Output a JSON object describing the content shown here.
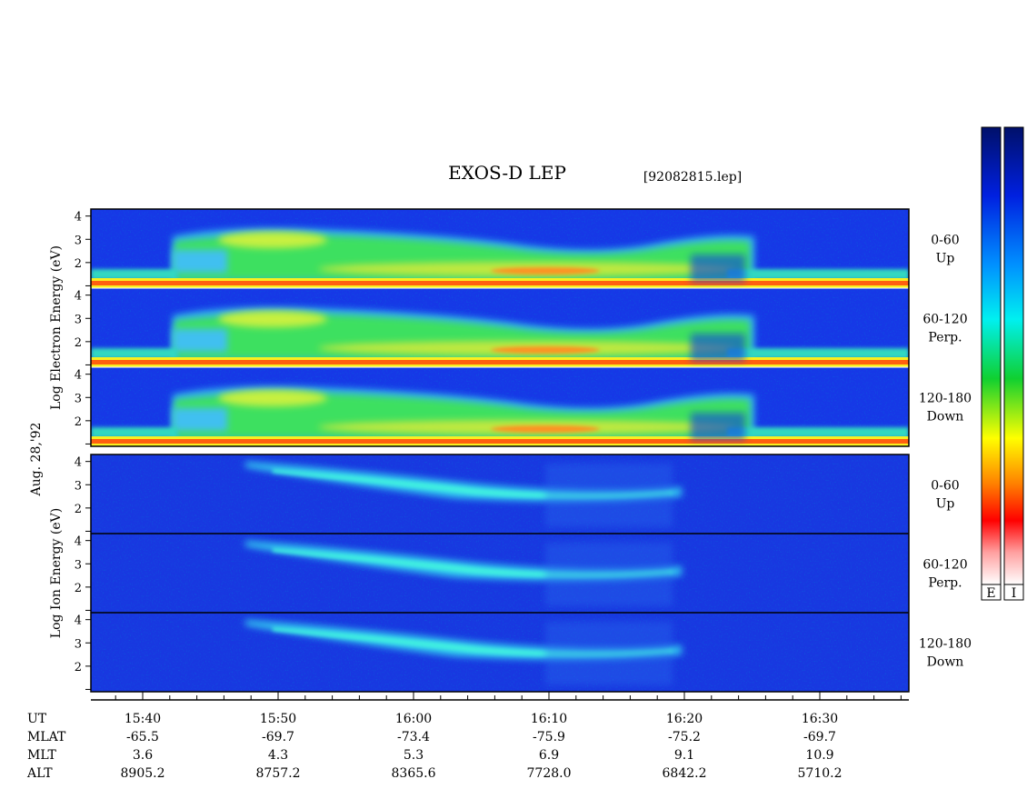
{
  "title": "EXOS-D LEP",
  "file": "[92082815.lep]",
  "date": "Aug. 28,'92",
  "groups": [
    {
      "label": "Log Electron Energy (eV)",
      "panels": [
        {
          "angle": "0-60",
          "direction": "Up",
          "yticks": [
            4,
            3,
            2
          ]
        },
        {
          "angle": "60-120",
          "direction": "Perp.",
          "yticks": [
            4,
            3,
            2
          ]
        },
        {
          "angle": "120-180",
          "direction": "Down",
          "yticks": [
            4,
            3,
            2
          ]
        }
      ]
    },
    {
      "label": "Log Ion Energy (eV)",
      "panels": [
        {
          "angle": "0-60",
          "direction": "Up",
          "yticks": [
            4,
            3,
            2
          ]
        },
        {
          "angle": "60-120",
          "direction": "Perp.",
          "yticks": [
            4,
            3,
            2
          ]
        },
        {
          "angle": "120-180",
          "direction": "Down",
          "yticks": [
            4,
            3,
            2
          ]
        }
      ]
    }
  ],
  "axis_rows": [
    {
      "name": "UT",
      "values": [
        "15:40",
        "15:50",
        "16:00",
        "16:10",
        "16:20",
        "16:30"
      ]
    },
    {
      "name": "MLAT",
      "values": [
        "-65.5",
        "-69.7",
        "-73.4",
        "-75.9",
        "-75.2",
        "-69.7"
      ]
    },
    {
      "name": "MLT",
      "values": [
        "3.6",
        "4.3",
        "5.3",
        "6.9",
        "9.1",
        "10.9"
      ]
    },
    {
      "name": "ALT",
      "values": [
        "8905.2",
        "8757.2",
        "8365.6",
        "7728.0",
        "6842.2",
        "5710.2"
      ]
    }
  ],
  "colorbars": [
    "E",
    "I"
  ]
}
